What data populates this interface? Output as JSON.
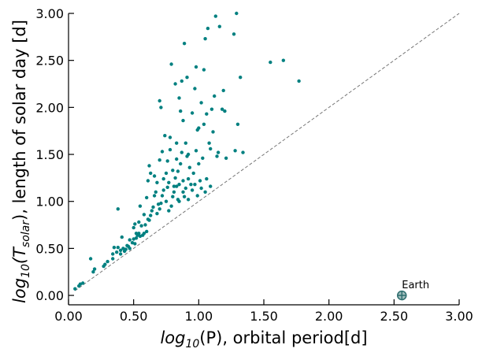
{
  "chart_data": {
    "type": "scatter",
    "title": "",
    "xlabel": {
      "prefix": "log",
      "sub": "10",
      "body": "(P), orbital period[d]"
    },
    "ylabel": {
      "prefix": "log",
      "sub": "10",
      "mid": "(T",
      "sub2": "solar",
      "body": "), length of solar day [d]"
    },
    "xlim": [
      0,
      3
    ],
    "ylim": [
      -0.1,
      3
    ],
    "xticks": [
      0,
      0.5,
      1.0,
      1.5,
      2.0,
      2.5,
      3.0
    ],
    "xtick_labels": [
      "0.00",
      "0.50",
      "1.00",
      "1.50",
      "2.00",
      "2.50",
      "3.00"
    ],
    "yticks": [
      0,
      0.5,
      1.0,
      1.5,
      2.0,
      2.5,
      3.0
    ],
    "ytick_labels": [
      "0.00",
      "0.50",
      "1.00",
      "1.50",
      "2.00",
      "2.50",
      "3.00"
    ],
    "grid": false,
    "point_color": "#008080",
    "reference_line": {
      "style": "dashed",
      "color": "#777777",
      "from": [
        0.05,
        0.05
      ],
      "to": [
        3.0,
        3.0
      ]
    },
    "earth_marker": {
      "label": "Earth",
      "x": 2.56,
      "y": 0.0,
      "color": "#2f6f6f"
    },
    "points": [
      [
        0.05,
        0.07
      ],
      [
        0.08,
        0.1
      ],
      [
        0.09,
        0.12
      ],
      [
        0.11,
        0.13
      ],
      [
        0.17,
        0.39
      ],
      [
        0.19,
        0.25
      ],
      [
        0.2,
        0.28
      ],
      [
        0.27,
        0.31
      ],
      [
        0.28,
        0.33
      ],
      [
        0.3,
        0.36
      ],
      [
        0.34,
        0.39
      ],
      [
        0.34,
        0.44
      ],
      [
        0.35,
        0.51
      ],
      [
        0.37,
        0.46
      ],
      [
        0.38,
        0.51
      ],
      [
        0.38,
        0.92
      ],
      [
        0.4,
        0.44
      ],
      [
        0.4,
        0.48
      ],
      [
        0.41,
        0.62
      ],
      [
        0.42,
        0.5
      ],
      [
        0.43,
        0.47
      ],
      [
        0.44,
        0.49
      ],
      [
        0.45,
        0.53
      ],
      [
        0.46,
        0.52
      ],
      [
        0.47,
        0.5
      ],
      [
        0.47,
        0.59
      ],
      [
        0.49,
        0.56
      ],
      [
        0.5,
        0.6
      ],
      [
        0.5,
        0.72
      ],
      [
        0.51,
        0.76
      ],
      [
        0.51,
        0.55
      ],
      [
        0.52,
        0.61
      ],
      [
        0.52,
        0.66
      ],
      [
        0.53,
        0.64
      ],
      [
        0.54,
        0.66
      ],
      [
        0.54,
        0.78
      ],
      [
        0.55,
        0.63
      ],
      [
        0.55,
        0.95
      ],
      [
        0.56,
        0.74
      ],
      [
        0.57,
        0.64
      ],
      [
        0.58,
        0.86
      ],
      [
        0.58,
        0.66
      ],
      [
        0.59,
        0.75
      ],
      [
        0.6,
        0.68
      ],
      [
        0.6,
        1.04
      ],
      [
        0.61,
        0.81
      ],
      [
        0.61,
        1.22
      ],
      [
        0.62,
        0.8
      ],
      [
        0.62,
        1.38
      ],
      [
        0.63,
        0.85
      ],
      [
        0.63,
        1.3
      ],
      [
        0.64,
        0.9
      ],
      [
        0.65,
        0.94
      ],
      [
        0.66,
        1.06
      ],
      [
        0.66,
        1.27
      ],
      [
        0.67,
        1.1
      ],
      [
        0.68,
        0.87
      ],
      [
        0.68,
        1.2
      ],
      [
        0.69,
        0.97
      ],
      [
        0.7,
        0.92
      ],
      [
        0.7,
        1.44
      ],
      [
        0.7,
        2.07
      ],
      [
        0.71,
        2.0
      ],
      [
        0.71,
        0.98
      ],
      [
        0.72,
        1.06
      ],
      [
        0.72,
        1.53
      ],
      [
        0.73,
        1.24
      ],
      [
        0.73,
        1.12
      ],
      [
        0.74,
        1.7
      ],
      [
        0.75,
        1.0
      ],
      [
        0.75,
        1.3
      ],
      [
        0.76,
        1.15
      ],
      [
        0.76,
        1.43
      ],
      [
        0.77,
        0.9
      ],
      [
        0.77,
        1.2
      ],
      [
        0.78,
        1.68
      ],
      [
        0.78,
        1.55
      ],
      [
        0.79,
        2.46
      ],
      [
        0.79,
        0.95
      ],
      [
        0.8,
        1.05
      ],
      [
        0.8,
        1.33
      ],
      [
        0.81,
        1.1
      ],
      [
        0.81,
        1.16
      ],
      [
        0.82,
        1.25
      ],
      [
        0.82,
        2.25
      ],
      [
        0.83,
        1.45
      ],
      [
        0.83,
        1.62
      ],
      [
        0.84,
        1.02
      ],
      [
        0.84,
        1.32
      ],
      [
        0.85,
        2.1
      ],
      [
        0.85,
        1.18
      ],
      [
        0.86,
        1.4
      ],
      [
        0.86,
        1.96
      ],
      [
        0.87,
        1.52
      ],
      [
        0.87,
        2.28
      ],
      [
        0.88,
        1.86
      ],
      [
        0.88,
        1.22
      ],
      [
        0.89,
        2.68
      ],
      [
        0.89,
        1.05
      ],
      [
        0.9,
        1.14
      ],
      [
        0.9,
        1.62
      ],
      [
        0.91,
        2.32
      ],
      [
        0.91,
        1.48
      ],
      [
        0.92,
        1.24
      ],
      [
        0.92,
        1.5
      ],
      [
        0.93,
        1.36
      ],
      [
        0.94,
        1.18
      ],
      [
        0.95,
        1.94
      ],
      [
        0.96,
        1.3
      ],
      [
        0.97,
        2.2
      ],
      [
        0.98,
        1.54
      ],
      [
        0.98,
        2.43
      ],
      [
        0.99,
        1.76
      ],
      [
        1.0,
        1.4
      ],
      [
        1.0,
        1.78
      ],
      [
        1.01,
        1.22
      ],
      [
        1.02,
        2.05
      ],
      [
        1.03,
        1.46
      ],
      [
        1.04,
        1.82
      ],
      [
        1.04,
        2.4
      ],
      [
        1.05,
        2.73
      ],
      [
        1.06,
        1.93
      ],
      [
        1.07,
        2.84
      ],
      [
        1.08,
        1.62
      ],
      [
        1.09,
        1.56
      ],
      [
        1.1,
        1.98
      ],
      [
        1.11,
        1.74
      ],
      [
        1.12,
        2.12
      ],
      [
        1.13,
        2.97
      ],
      [
        1.14,
        1.48
      ],
      [
        1.15,
        1.52
      ],
      [
        1.16,
        2.86
      ],
      [
        1.18,
        1.98
      ],
      [
        1.19,
        2.18
      ],
      [
        1.2,
        1.96
      ],
      [
        1.21,
        1.46
      ],
      [
        1.27,
        2.78
      ],
      [
        1.28,
        1.54
      ],
      [
        1.29,
        3.0
      ],
      [
        1.3,
        1.82
      ],
      [
        1.32,
        2.32
      ],
      [
        1.34,
        1.52
      ],
      [
        1.55,
        2.48
      ],
      [
        1.65,
        2.5
      ],
      [
        1.77,
        2.28
      ],
      [
        0.83,
        1.16
      ],
      [
        0.85,
        1.0
      ],
      [
        0.88,
        1.1
      ],
      [
        0.92,
        1.02
      ],
      [
        0.95,
        1.12
      ],
      [
        0.97,
        1.18
      ],
      [
        0.99,
        1.06
      ],
      [
        1.02,
        1.14
      ],
      [
        1.05,
        1.1
      ],
      [
        1.06,
        1.24
      ],
      [
        1.09,
        1.16
      ]
    ]
  }
}
